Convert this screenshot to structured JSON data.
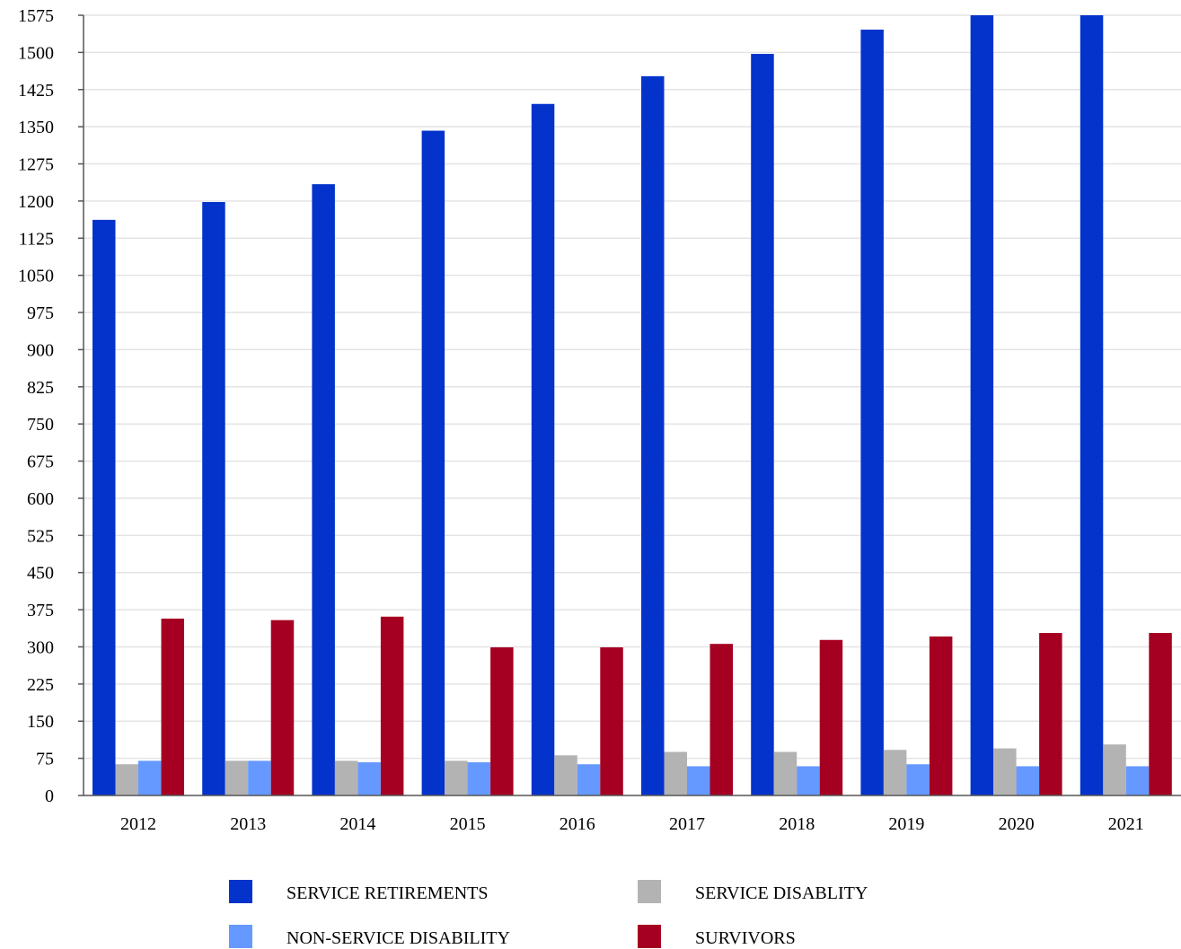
{
  "chart_data": {
    "type": "bar",
    "categories": [
      "2012",
      "2013",
      "2014",
      "2015",
      "2016",
      "2017",
      "2018",
      "2019",
      "2020",
      "2021"
    ],
    "series": [
      {
        "name": "SERVICE RETIREMENTS",
        "color": "#0433cc",
        "values": [
          1162,
          1198,
          1234,
          1342,
          1396,
          1452,
          1497,
          1546,
          1575,
          1575
        ]
      },
      {
        "name": "SERVICE DISABLITY",
        "color": "#b3b3b3",
        "values": [
          63,
          70,
          70,
          70,
          81,
          88,
          88,
          92,
          95,
          103
        ]
      },
      {
        "name": "NON-SERVICE DISABILITY",
        "color": "#6699ff",
        "values": [
          70,
          70,
          67,
          67,
          63,
          59,
          59,
          63,
          59,
          59
        ]
      },
      {
        "name": "SURVIVORS",
        "color": "#a50021",
        "values": [
          357,
          354,
          361,
          299,
          299,
          306,
          314,
          321,
          328,
          328
        ]
      }
    ],
    "yticks": [
      "0",
      "75",
      "150",
      "225",
      "300",
      "375",
      "450",
      "525",
      "600",
      "675",
      "750",
      "825",
      "900",
      "975",
      "1050",
      "1125",
      "1200",
      "1275",
      "1350",
      "1425",
      "1500",
      "1575"
    ],
    "ylim": [
      0,
      1575
    ],
    "grid": true,
    "legend_position": "bottom"
  }
}
